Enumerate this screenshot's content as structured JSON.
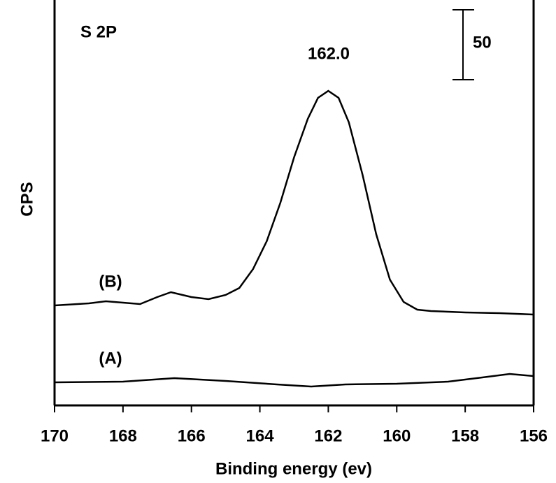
{
  "chart_data": {
    "type": "line",
    "title": "S 2P",
    "xlabel": "Binding energy (ev)",
    "ylabel": "CPS",
    "annotations": [
      "162.0"
    ],
    "scale_bar": 50,
    "xlim": [
      170,
      156
    ],
    "xticks": [
      170,
      168,
      166,
      164,
      162,
      160,
      158,
      156
    ],
    "ylim": [
      0,
      290
    ],
    "series": [
      {
        "name": "(B)",
        "color": "#000000",
        "x": [
          170,
          169,
          168.5,
          168,
          167.5,
          167,
          166.6,
          166,
          165.5,
          165,
          164.6,
          164.2,
          163.8,
          163.4,
          163,
          162.6,
          162.3,
          162.0,
          161.7,
          161.4,
          161,
          160.6,
          160.2,
          159.8,
          159.4,
          159,
          158,
          157,
          156
        ],
        "values": [
          71.5,
          73,
          74.5,
          73.5,
          72.5,
          77.5,
          81,
          77.5,
          76,
          79,
          84,
          97.5,
          117.5,
          145,
          177.5,
          205,
          220,
          225,
          220,
          202.5,
          165,
          122.5,
          90,
          74,
          68.5,
          67.5,
          66.5,
          66,
          65
        ]
      },
      {
        "name": "(A)",
        "color": "#000000",
        "x": [
          170,
          168,
          166.5,
          165,
          163.5,
          162.5,
          161.5,
          160,
          158.5,
          157.5,
          156.7,
          156
        ],
        "values": [
          16.5,
          17,
          19.5,
          17.5,
          15,
          13.5,
          15,
          15.5,
          17,
          20,
          22.5,
          21
        ]
      }
    ]
  }
}
